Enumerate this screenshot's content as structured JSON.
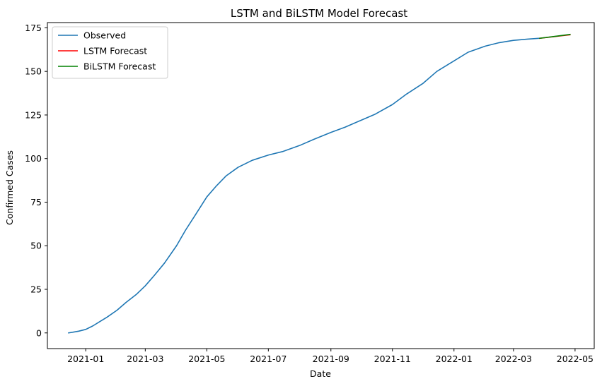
{
  "chart_data": {
    "type": "line",
    "title": "LSTM and BiLSTM Model Forecast",
    "xlabel": "Date",
    "ylabel": "Confirmed Cases",
    "x_axis_type": "date",
    "xlim": [
      "2020-11-24",
      "2022-05-20"
    ],
    "ylim": [
      -9,
      178
    ],
    "xticks": [
      "2021-01-01",
      "2021-03-01",
      "2021-05-01",
      "2021-07-01",
      "2021-09-01",
      "2021-11-01",
      "2022-01-01",
      "2022-03-01",
      "2022-05-01"
    ],
    "xtick_labels": [
      "2021-01",
      "2021-03",
      "2021-05",
      "2021-07",
      "2021-09",
      "2021-11",
      "2022-01",
      "2022-03",
      "2022-05"
    ],
    "yticks": [
      0,
      25,
      50,
      75,
      100,
      125,
      150,
      175
    ],
    "grid": false,
    "legend_position": "top-left",
    "series": [
      {
        "name": "Observed",
        "color": "#1f77b4",
        "points": [
          [
            "2020-12-15",
            0
          ],
          [
            "2020-12-20",
            0.5
          ],
          [
            "2020-12-25",
            1
          ],
          [
            "2021-01-01",
            2
          ],
          [
            "2021-01-08",
            4
          ],
          [
            "2021-01-15",
            6.5
          ],
          [
            "2021-01-22",
            9
          ],
          [
            "2021-02-01",
            13
          ],
          [
            "2021-02-10",
            17.5
          ],
          [
            "2021-02-20",
            22
          ],
          [
            "2021-03-01",
            27
          ],
          [
            "2021-03-10",
            33
          ],
          [
            "2021-03-20",
            40
          ],
          [
            "2021-04-01",
            50
          ],
          [
            "2021-04-10",
            59
          ],
          [
            "2021-04-20",
            68
          ],
          [
            "2021-05-01",
            78
          ],
          [
            "2021-05-10",
            84
          ],
          [
            "2021-05-20",
            90
          ],
          [
            "2021-06-01",
            95
          ],
          [
            "2021-06-15",
            99
          ],
          [
            "2021-07-01",
            102
          ],
          [
            "2021-07-15",
            104
          ],
          [
            "2021-08-01",
            107.5
          ],
          [
            "2021-08-15",
            111
          ],
          [
            "2021-09-01",
            115
          ],
          [
            "2021-09-15",
            118
          ],
          [
            "2021-10-01",
            122
          ],
          [
            "2021-10-15",
            125.5
          ],
          [
            "2021-11-01",
            131
          ],
          [
            "2021-11-15",
            137
          ],
          [
            "2021-12-01",
            143
          ],
          [
            "2021-12-15",
            150
          ],
          [
            "2022-01-01",
            156
          ],
          [
            "2022-01-15",
            161
          ],
          [
            "2022-02-01",
            164.5
          ],
          [
            "2022-02-15",
            166.5
          ],
          [
            "2022-03-01",
            167.8
          ],
          [
            "2022-03-15",
            168.5
          ],
          [
            "2022-03-27",
            169
          ]
        ]
      },
      {
        "name": "LSTM Forecast",
        "color": "#ff0000",
        "points": [
          [
            "2022-03-27",
            169
          ],
          [
            "2022-04-26",
            171
          ]
        ]
      },
      {
        "name": "BiLSTM Forecast",
        "color": "#008000",
        "points": [
          [
            "2022-03-27",
            169
          ],
          [
            "2022-04-26",
            171.2
          ]
        ]
      }
    ]
  }
}
